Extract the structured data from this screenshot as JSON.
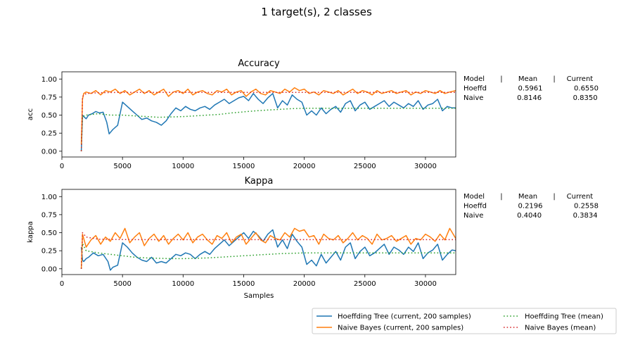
{
  "figure": {
    "suptitle": "1 target(s), 2 classes"
  },
  "chart_data": [
    {
      "type": "line",
      "title": "Accuracy",
      "xlabel": "",
      "ylabel": "acc",
      "xlim": [
        0,
        32500
      ],
      "ylim": [
        -0.08,
        1.1
      ],
      "xticks": [
        0,
        5000,
        10000,
        15000,
        20000,
        25000,
        30000
      ],
      "yticks": [
        0.0,
        0.25,
        0.5,
        0.75,
        1.0
      ],
      "xtick_labels": [
        "0",
        "5000",
        "10000",
        "15000",
        "20000",
        "25000",
        "30000"
      ],
      "ytick_labels": [
        "0.00",
        "0.25",
        "0.50",
        "0.75",
        "1.00"
      ],
      "series": [
        {
          "name": "Hoeffding Tree  (current, 200 samples)",
          "color": "#1f77b4",
          "style": "solid",
          "x": [
            1600,
            1700,
            1800,
            2000,
            2200,
            2500,
            2800,
            3100,
            3400,
            3700,
            3900,
            4200,
            4600,
            5000,
            5400,
            5800,
            6200,
            6600,
            7000,
            7400,
            7800,
            8200,
            8600,
            9000,
            9400,
            9800,
            10200,
            10600,
            11000,
            11400,
            11800,
            12200,
            12600,
            13000,
            13400,
            13800,
            14200,
            14600,
            15000,
            15400,
            15800,
            16200,
            16600,
            17000,
            17400,
            17800,
            18200,
            18600,
            19000,
            19400,
            19800,
            20200,
            20600,
            21000,
            21400,
            21800,
            22200,
            22600,
            23000,
            23400,
            23800,
            24200,
            24600,
            25000,
            25400,
            25800,
            26200,
            26600,
            27000,
            27400,
            27800,
            28200,
            28600,
            29000,
            29400,
            29800,
            30200,
            30600,
            31000,
            31400,
            31800,
            32200,
            32500
          ],
          "y": [
            0.0,
            0.5,
            0.48,
            0.45,
            0.5,
            0.52,
            0.55,
            0.53,
            0.54,
            0.4,
            0.24,
            0.3,
            0.36,
            0.68,
            0.62,
            0.56,
            0.5,
            0.44,
            0.46,
            0.42,
            0.4,
            0.36,
            0.42,
            0.52,
            0.6,
            0.56,
            0.62,
            0.58,
            0.56,
            0.6,
            0.62,
            0.58,
            0.64,
            0.68,
            0.72,
            0.66,
            0.7,
            0.74,
            0.76,
            0.7,
            0.8,
            0.72,
            0.66,
            0.74,
            0.8,
            0.6,
            0.7,
            0.64,
            0.78,
            0.72,
            0.68,
            0.5,
            0.56,
            0.5,
            0.6,
            0.52,
            0.58,
            0.62,
            0.54,
            0.66,
            0.7,
            0.56,
            0.64,
            0.68,
            0.58,
            0.62,
            0.66,
            0.7,
            0.62,
            0.68,
            0.64,
            0.6,
            0.66,
            0.62,
            0.7,
            0.58,
            0.64,
            0.66,
            0.72,
            0.56,
            0.62,
            0.6,
            0.6
          ]
        },
        {
          "name": "Naive Bayes  (current, 200 samples)",
          "color": "#ff7f0e",
          "style": "solid",
          "x": [
            1600,
            1700,
            1800,
            2000,
            2400,
            2800,
            3200,
            3600,
            4000,
            4400,
            4800,
            5200,
            5600,
            6000,
            6400,
            6800,
            7200,
            7600,
            8000,
            8400,
            8800,
            9200,
            9600,
            10000,
            10400,
            10800,
            11200,
            11600,
            12000,
            12400,
            12800,
            13200,
            13600,
            14000,
            14400,
            14800,
            15200,
            15600,
            16000,
            16400,
            16800,
            17200,
            17600,
            18000,
            18400,
            18800,
            19200,
            19600,
            20000,
            20400,
            20800,
            21200,
            21600,
            22000,
            22400,
            22800,
            23200,
            23600,
            24000,
            24400,
            24800,
            25200,
            25600,
            26000,
            26400,
            26800,
            27200,
            27600,
            28000,
            28400,
            28800,
            29200,
            29600,
            30000,
            30400,
            30800,
            31200,
            31600,
            32000,
            32500
          ],
          "y": [
            0.1,
            0.72,
            0.8,
            0.82,
            0.8,
            0.84,
            0.78,
            0.84,
            0.82,
            0.86,
            0.8,
            0.84,
            0.78,
            0.82,
            0.86,
            0.8,
            0.84,
            0.78,
            0.82,
            0.86,
            0.76,
            0.82,
            0.84,
            0.8,
            0.86,
            0.78,
            0.82,
            0.84,
            0.8,
            0.78,
            0.84,
            0.82,
            0.86,
            0.78,
            0.82,
            0.84,
            0.76,
            0.82,
            0.86,
            0.8,
            0.78,
            0.84,
            0.82,
            0.8,
            0.86,
            0.82,
            0.88,
            0.84,
            0.86,
            0.8,
            0.82,
            0.78,
            0.84,
            0.82,
            0.8,
            0.84,
            0.78,
            0.82,
            0.86,
            0.8,
            0.84,
            0.82,
            0.78,
            0.84,
            0.8,
            0.82,
            0.84,
            0.8,
            0.82,
            0.84,
            0.78,
            0.82,
            0.8,
            0.84,
            0.82,
            0.8,
            0.84,
            0.8,
            0.82,
            0.84
          ]
        },
        {
          "name": "Hoeffding Tree (mean)",
          "color": "#2ca02c",
          "style": "dotted",
          "x": [
            1600,
            1700,
            2000,
            3000,
            4000,
            5000,
            6000,
            7000,
            8000,
            9000,
            10000,
            11000,
            12000,
            13000,
            14000,
            15000,
            16000,
            17000,
            18000,
            19000,
            20000,
            21000,
            22000,
            23000,
            24000,
            25000,
            26000,
            27000,
            28000,
            29000,
            30000,
            31000,
            32000,
            32500
          ],
          "y": [
            0.0,
            0.48,
            0.5,
            0.52,
            0.5,
            0.5,
            0.49,
            0.48,
            0.47,
            0.475,
            0.48,
            0.49,
            0.5,
            0.51,
            0.53,
            0.545,
            0.56,
            0.57,
            0.58,
            0.59,
            0.595,
            0.595,
            0.595,
            0.595,
            0.595,
            0.595,
            0.596,
            0.596,
            0.596,
            0.596,
            0.596,
            0.596,
            0.596,
            0.5961
          ]
        },
        {
          "name": "Naive Bayes (mean)",
          "color": "#d62728",
          "style": "dotted",
          "x": [
            1600,
            1700,
            2000,
            3000,
            5000,
            10000,
            15000,
            20000,
            25000,
            30000,
            32500
          ],
          "y": [
            0.0,
            0.76,
            0.8,
            0.81,
            0.815,
            0.815,
            0.815,
            0.815,
            0.8146,
            0.8146,
            0.8146
          ]
        }
      ],
      "stats_table": {
        "header": "Model       |       Mean       |     Current",
        "rows": [
          "Hoeffd              0.5961              0.6550",
          "Naive               0.8146              0.8350"
        ]
      }
    },
    {
      "type": "line",
      "title": "Kappa",
      "xlabel": "Samples",
      "ylabel": "kappa",
      "xlim": [
        0,
        32500
      ],
      "ylim": [
        -0.08,
        1.1
      ],
      "xticks": [
        0,
        5000,
        10000,
        15000,
        20000,
        25000,
        30000
      ],
      "yticks": [
        0.0,
        0.25,
        0.5,
        0.75,
        1.0
      ],
      "xtick_labels": [
        "0",
        "5000",
        "10000",
        "15000",
        "20000",
        "25000",
        "30000"
      ],
      "ytick_labels": [
        "0.00",
        "0.25",
        "0.50",
        "0.75",
        "1.00"
      ],
      "series": [
        {
          "name": "Hoeffding Tree  (current, 200 samples)",
          "color": "#1f77b4",
          "style": "solid",
          "x": [
            1600,
            1700,
            1800,
            2000,
            2200,
            2600,
            3000,
            3400,
            3800,
            4000,
            4200,
            4600,
            5000,
            5400,
            5800,
            6200,
            6600,
            7000,
            7400,
            7800,
            8200,
            8600,
            9000,
            9400,
            9800,
            10200,
            10600,
            11000,
            11400,
            11800,
            12200,
            12600,
            13000,
            13400,
            13800,
            14200,
            14600,
            15000,
            15400,
            15800,
            16200,
            16600,
            17000,
            17400,
            17800,
            18200,
            18600,
            19000,
            19400,
            19800,
            20200,
            20600,
            21000,
            21400,
            21800,
            22200,
            22600,
            23000,
            23400,
            23800,
            24200,
            24600,
            25000,
            25400,
            25800,
            26200,
            26600,
            27000,
            27400,
            27800,
            28200,
            28600,
            29000,
            29400,
            29800,
            30200,
            30600,
            31000,
            31400,
            31800,
            32200,
            32500
          ],
          "y": [
            0.3,
            0.12,
            0.1,
            0.14,
            0.16,
            0.22,
            0.18,
            0.2,
            0.1,
            -0.02,
            0.02,
            0.05,
            0.36,
            0.3,
            0.22,
            0.16,
            0.12,
            0.1,
            0.16,
            0.08,
            0.1,
            0.08,
            0.14,
            0.2,
            0.18,
            0.22,
            0.2,
            0.14,
            0.2,
            0.24,
            0.2,
            0.28,
            0.34,
            0.4,
            0.32,
            0.38,
            0.44,
            0.5,
            0.42,
            0.52,
            0.46,
            0.38,
            0.48,
            0.54,
            0.3,
            0.4,
            0.28,
            0.48,
            0.38,
            0.3,
            0.06,
            0.12,
            0.04,
            0.2,
            0.08,
            0.16,
            0.24,
            0.12,
            0.3,
            0.36,
            0.14,
            0.24,
            0.3,
            0.18,
            0.22,
            0.28,
            0.34,
            0.2,
            0.3,
            0.26,
            0.2,
            0.3,
            0.24,
            0.36,
            0.14,
            0.22,
            0.26,
            0.34,
            0.12,
            0.2,
            0.26,
            0.25
          ]
        },
        {
          "name": "Naive Bayes  (current, 200 samples)",
          "color": "#ff7f0e",
          "style": "solid",
          "x": [
            1600,
            1700,
            1800,
            2000,
            2400,
            2800,
            3200,
            3600,
            4000,
            4400,
            4800,
            5200,
            5600,
            6000,
            6400,
            6800,
            7200,
            7600,
            8000,
            8400,
            8800,
            9200,
            9600,
            10000,
            10400,
            10800,
            11200,
            11600,
            12000,
            12400,
            12800,
            13200,
            13600,
            14000,
            14400,
            14800,
            15200,
            15600,
            16000,
            16400,
            16800,
            17200,
            17600,
            18000,
            18400,
            18800,
            19200,
            19600,
            20000,
            20400,
            20800,
            21200,
            21600,
            22000,
            22400,
            22800,
            23200,
            23600,
            24000,
            24400,
            24800,
            25200,
            25600,
            26000,
            26400,
            26800,
            27200,
            27600,
            28000,
            28400,
            28800,
            29200,
            29600,
            30000,
            30400,
            30800,
            31200,
            31600,
            32000,
            32500
          ],
          "y": [
            0.0,
            0.48,
            0.42,
            0.3,
            0.4,
            0.46,
            0.34,
            0.44,
            0.38,
            0.5,
            0.42,
            0.56,
            0.36,
            0.44,
            0.5,
            0.32,
            0.42,
            0.48,
            0.38,
            0.46,
            0.34,
            0.42,
            0.48,
            0.4,
            0.5,
            0.36,
            0.44,
            0.48,
            0.4,
            0.34,
            0.46,
            0.42,
            0.5,
            0.36,
            0.44,
            0.48,
            0.34,
            0.42,
            0.5,
            0.4,
            0.36,
            0.46,
            0.42,
            0.4,
            0.5,
            0.44,
            0.56,
            0.52,
            0.54,
            0.44,
            0.46,
            0.34,
            0.48,
            0.42,
            0.4,
            0.46,
            0.36,
            0.42,
            0.5,
            0.4,
            0.46,
            0.42,
            0.34,
            0.48,
            0.4,
            0.42,
            0.46,
            0.38,
            0.42,
            0.46,
            0.34,
            0.42,
            0.4,
            0.48,
            0.44,
            0.38,
            0.48,
            0.4,
            0.56,
            0.42
          ]
        },
        {
          "name": "Hoeffding Tree (mean)",
          "color": "#2ca02c",
          "style": "dotted",
          "x": [
            1600,
            1700,
            2000,
            3000,
            4000,
            5000,
            6000,
            7000,
            8000,
            9000,
            10000,
            11000,
            12000,
            13000,
            14000,
            15000,
            16000,
            17000,
            18000,
            19000,
            20000,
            21000,
            22000,
            23000,
            24000,
            25000,
            26000,
            27000,
            28000,
            29000,
            30000,
            31000,
            32000,
            32500
          ],
          "y": [
            0.0,
            0.35,
            0.25,
            0.22,
            0.2,
            0.18,
            0.16,
            0.15,
            0.145,
            0.14,
            0.14,
            0.145,
            0.15,
            0.16,
            0.17,
            0.18,
            0.19,
            0.2,
            0.21,
            0.215,
            0.22,
            0.22,
            0.22,
            0.22,
            0.22,
            0.22,
            0.22,
            0.22,
            0.22,
            0.22,
            0.22,
            0.2196,
            0.2196,
            0.2196
          ]
        },
        {
          "name": "Naive Bayes (mean)",
          "color": "#d62728",
          "style": "dotted",
          "x": [
            1600,
            1700,
            2000,
            3000,
            5000,
            10000,
            15000,
            20000,
            25000,
            30000,
            32500
          ],
          "y": [
            0.0,
            0.5,
            0.44,
            0.41,
            0.405,
            0.404,
            0.404,
            0.404,
            0.404,
            0.404,
            0.404
          ]
        }
      ],
      "stats_table": {
        "header": "Model       |       Mean       |     Current",
        "rows": [
          "Hoeffd              0.2196              0.2558",
          "Naive               0.4040              0.3834"
        ]
      }
    }
  ],
  "legend": {
    "placement": "bottom-right",
    "entries": [
      {
        "label": "Hoeffding Tree  (current, 200 samples)",
        "color": "#1f77b4",
        "style": "solid"
      },
      {
        "label": "Naive Bayes  (current, 200 samples)",
        "color": "#ff7f0e",
        "style": "solid"
      },
      {
        "label": "Hoeffding Tree (mean)",
        "color": "#2ca02c",
        "style": "dotted"
      },
      {
        "label": "Naive Bayes (mean)",
        "color": "#d62728",
        "style": "dotted"
      }
    ]
  }
}
